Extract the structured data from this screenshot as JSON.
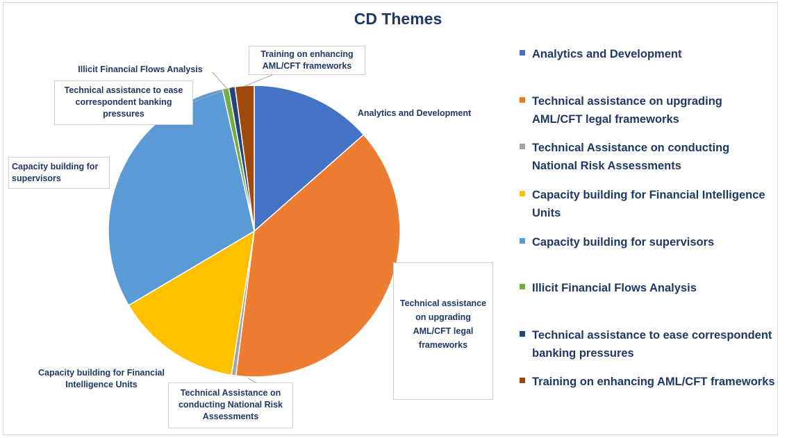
{
  "chart_data": {
    "type": "pie",
    "title": "CD Themes",
    "legend_position": "right",
    "series": [
      {
        "name": "",
        "categories": [
          "Analytics and Development",
          "Technical assistance on upgrading AML/CFT legal frameworks",
          "Technical Assistance on conducting National Risk Assessments",
          "Capacity building for Financial Intelligence Units",
          "Capacity building for supervisors",
          "Illicit Financial Flows Analysis",
          "Technical assistance to ease correspondent banking pressures",
          "Training on enhancing AML/CFT frameworks"
        ],
        "values": [
          13.5,
          38.5,
          0.5,
          14.0,
          30.0,
          0.7,
          0.7,
          2.1
        ]
      }
    ],
    "colors": [
      "#4472c4",
      "#ed7d31",
      "#a5a5a5",
      "#ffc000",
      "#5b9bd5",
      "#70ad47",
      "#264478",
      "#9e480e"
    ],
    "legend": [
      "Analytics and Development",
      "Technical assistance on upgrading AML/CFT legal frameworks",
      "Technical Assistance on conducting National Risk Assessments",
      "Capacity building for Financial Intelligence Units",
      "Capacity building for supervisors",
      "Illicit Financial Flows Analysis",
      "Technical assistance to ease correspondent banking pressures",
      "Training on enhancing AML/CFT frameworks"
    ],
    "data_labels": [
      "Analytics and Development",
      "Technical assistance on upgrading AML/CFT legal frameworks",
      "Technical Assistance on conducting National Risk Assessments",
      "Capacity building for Financial Intelligence Units",
      "Capacity building for supervisors",
      "Illicit Financial Flows Analysis",
      "Technical assistance to ease correspondent banking pressures",
      "Training on enhancing AML/CFT frameworks"
    ]
  }
}
